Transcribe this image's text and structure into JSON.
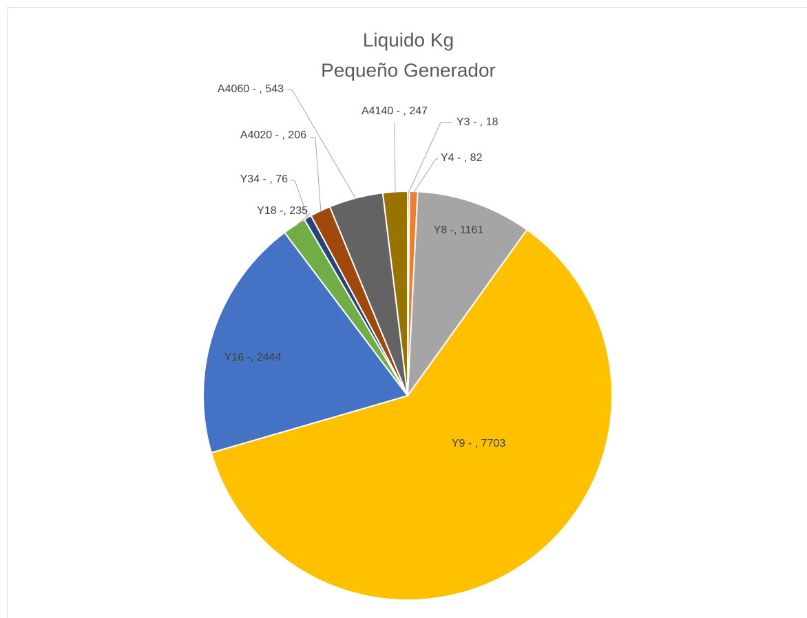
{
  "chart_data": {
    "type": "pie",
    "title": "Liquido Kg",
    "subtitle": "Pequeño Generador",
    "values": [
      18,
      82,
      1161,
      7703,
      2444,
      235,
      76,
      206,
      543,
      247
    ],
    "value_labels": [
      "Y3 - , 18",
      "Y4 - , 82",
      "Y8 -, 1161",
      "Y9 - , 7703",
      "Y16 -, 2444",
      "Y18 -, 235",
      "Y34 - , 76",
      "A4020 - , 206",
      "A4060 - , 543",
      "A4140 - , 247"
    ],
    "colors": [
      "#5b9bd5",
      "#ed7d31",
      "#a5a5a5",
      "#ffc000",
      "#4472c4",
      "#70ad47",
      "#264478",
      "#9e480e",
      "#636363",
      "#997300"
    ]
  }
}
